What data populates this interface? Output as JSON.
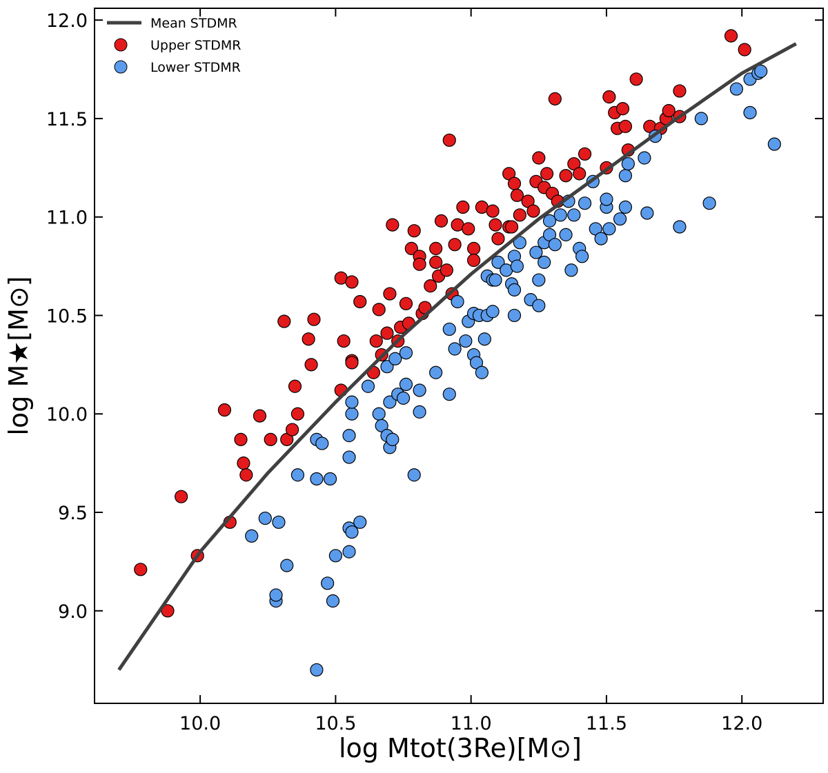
{
  "chart_data": {
    "type": "scatter",
    "x_label": "log Mtot(3Re)[M⊙]",
    "y_label": "log M★[M⊙]",
    "xlim": [
      9.61,
      12.3
    ],
    "ylim": [
      8.53,
      12.06
    ],
    "xticks": [
      10.0,
      10.5,
      11.0,
      11.5,
      12.0
    ],
    "yticks": [
      9.0,
      9.5,
      10.0,
      10.5,
      11.0,
      11.5,
      12.0
    ],
    "legend": "upper left",
    "line": {
      "name": "Mean STDMR",
      "color": "#404040",
      "x": [
        9.7,
        9.85,
        10.0,
        10.25,
        10.5,
        10.75,
        11.0,
        11.25,
        11.5,
        11.75,
        12.0,
        12.2
      ],
      "y": [
        8.7,
        9.0,
        9.3,
        9.7,
        10.06,
        10.4,
        10.71,
        10.99,
        11.24,
        11.49,
        11.73,
        11.88
      ]
    },
    "series": [
      {
        "name": "Upper STDMR",
        "color": "#e31a1c",
        "x": [
          9.78,
          9.88,
          9.93,
          9.99,
          10.09,
          10.11,
          10.15,
          10.16,
          10.17,
          10.22,
          10.26,
          10.31,
          10.32,
          10.34,
          10.35,
          10.36,
          10.4,
          10.41,
          10.42,
          10.52,
          10.53,
          10.52,
          10.56,
          10.56,
          10.56,
          10.59,
          10.64,
          10.65,
          10.66,
          10.67,
          10.69,
          10.7,
          10.71,
          10.73,
          10.74,
          10.76,
          10.77,
          10.78,
          10.79,
          10.81,
          10.81,
          10.82,
          10.83,
          10.85,
          10.87,
          10.87,
          10.88,
          10.89,
          10.91,
          10.92,
          10.93,
          10.94,
          10.95,
          10.97,
          10.99,
          11.01,
          11.01,
          11.04,
          11.08,
          11.09,
          11.1,
          11.14,
          11.15,
          11.14,
          11.16,
          11.17,
          11.18,
          11.21,
          11.23,
          11.24,
          11.25,
          11.27,
          11.28,
          11.3,
          11.31,
          11.32,
          11.35,
          11.38,
          11.4,
          11.42,
          11.5,
          11.51,
          11.53,
          11.54,
          11.56,
          11.57,
          11.58,
          11.61,
          11.66,
          11.7,
          11.72,
          11.73,
          11.77,
          11.77,
          11.96,
          12.01
        ],
        "values": [
          9.21,
          9.0,
          9.58,
          9.28,
          10.02,
          9.45,
          9.87,
          9.75,
          9.69,
          9.99,
          9.87,
          10.47,
          9.87,
          9.92,
          10.14,
          10.0,
          10.38,
          10.25,
          10.48,
          10.69,
          10.37,
          10.12,
          10.27,
          10.67,
          10.26,
          10.57,
          10.21,
          10.37,
          10.53,
          10.3,
          10.41,
          10.61,
          10.96,
          10.37,
          10.44,
          10.56,
          10.46,
          10.84,
          10.93,
          10.8,
          10.76,
          10.51,
          10.54,
          10.65,
          10.84,
          10.77,
          10.7,
          10.98,
          10.73,
          11.39,
          10.61,
          10.86,
          10.96,
          11.05,
          10.94,
          10.84,
          10.78,
          11.05,
          11.03,
          10.96,
          10.89,
          10.95,
          10.95,
          11.22,
          11.17,
          11.11,
          11.01,
          11.08,
          11.03,
          11.18,
          11.3,
          11.15,
          11.22,
          11.12,
          11.6,
          11.08,
          11.21,
          11.27,
          11.22,
          11.32,
          11.25,
          11.61,
          11.53,
          11.45,
          11.55,
          11.46,
          11.34,
          11.7,
          11.46,
          11.45,
          11.5,
          11.54,
          11.64,
          11.51,
          11.92,
          11.85
        ]
      },
      {
        "name": "Lower STDMR",
        "color": "#5b9bec",
        "x": [
          10.43,
          10.29,
          10.24,
          10.19,
          10.28,
          10.28,
          10.32,
          10.36,
          10.43,
          10.43,
          10.45,
          10.48,
          10.47,
          10.49,
          10.5,
          10.55,
          10.55,
          10.56,
          10.59,
          10.55,
          10.55,
          10.56,
          10.56,
          10.62,
          10.66,
          10.67,
          10.69,
          10.7,
          10.71,
          10.7,
          10.69,
          10.72,
          10.73,
          10.75,
          10.76,
          10.76,
          10.79,
          10.81,
          10.81,
          10.87,
          10.92,
          10.92,
          10.94,
          10.95,
          10.98,
          10.99,
          11.01,
          11.01,
          11.02,
          11.03,
          11.04,
          11.05,
          11.06,
          11.08,
          11.06,
          11.08,
          11.09,
          11.1,
          11.13,
          11.15,
          11.16,
          11.16,
          11.16,
          11.17,
          11.18,
          11.22,
          11.24,
          11.25,
          11.25,
          11.27,
          11.27,
          11.29,
          11.29,
          11.31,
          11.33,
          11.35,
          11.36,
          11.37,
          11.38,
          11.4,
          11.41,
          11.42,
          11.45,
          11.46,
          11.48,
          11.5,
          11.5,
          11.51,
          11.55,
          11.57,
          11.57,
          11.58,
          11.64,
          11.65,
          11.68,
          11.77,
          11.85,
          11.88,
          11.98,
          12.03,
          12.03,
          12.06,
          12.07,
          12.12
        ],
        "values": [
          8.7,
          9.45,
          9.47,
          9.38,
          9.05,
          9.08,
          9.23,
          9.69,
          9.87,
          9.67,
          9.85,
          9.67,
          9.14,
          9.05,
          9.28,
          9.3,
          9.42,
          9.4,
          9.45,
          9.78,
          9.89,
          10.0,
          10.06,
          10.14,
          10.0,
          9.94,
          9.89,
          9.83,
          9.87,
          10.06,
          10.24,
          10.28,
          10.1,
          10.08,
          10.31,
          10.15,
          9.69,
          10.12,
          10.01,
          10.21,
          10.1,
          10.43,
          10.33,
          10.57,
          10.37,
          10.47,
          10.51,
          10.3,
          10.26,
          10.5,
          10.21,
          10.38,
          10.5,
          10.52,
          10.7,
          10.68,
          10.68,
          10.77,
          10.73,
          10.66,
          10.63,
          10.8,
          10.5,
          10.75,
          10.87,
          10.58,
          10.82,
          10.68,
          10.55,
          10.77,
          10.87,
          10.91,
          10.98,
          10.86,
          11.01,
          10.91,
          11.08,
          10.73,
          11.01,
          10.84,
          10.8,
          11.07,
          11.18,
          10.94,
          10.89,
          11.05,
          11.09,
          10.94,
          10.99,
          11.05,
          11.21,
          11.27,
          11.3,
          11.02,
          11.41,
          10.95,
          11.5,
          11.07,
          11.65,
          11.53,
          11.7,
          11.73,
          11.74,
          11.37
        ]
      }
    ]
  }
}
